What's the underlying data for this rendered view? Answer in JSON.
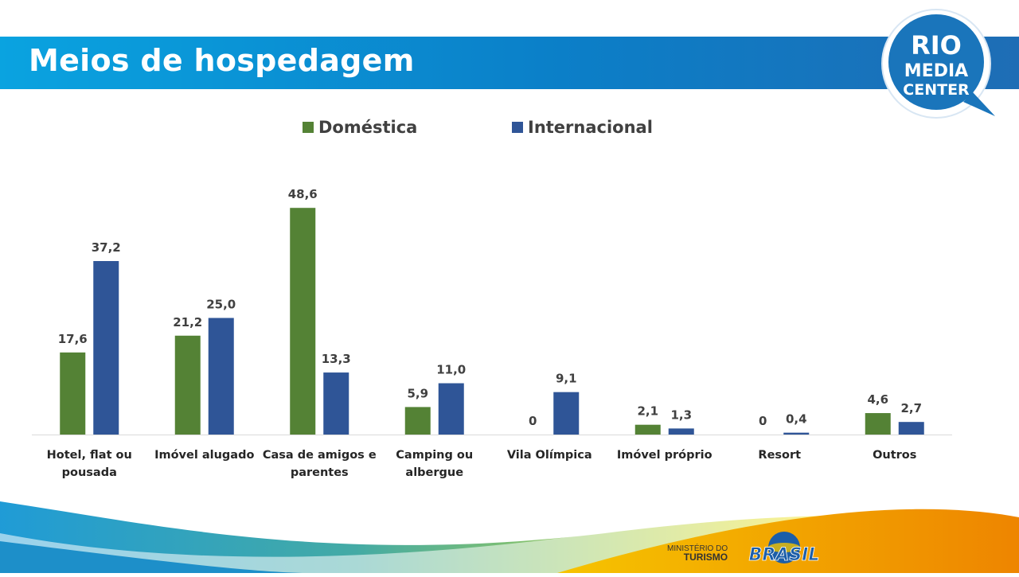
{
  "header": {
    "title": "Meios de hospedagem"
  },
  "logo": {
    "line1": "RIO",
    "line2": "MEDIA",
    "line3": "CENTER",
    "color": "#1a75bb"
  },
  "footer": {
    "ministerio_line1": "MINISTÉRIO DO",
    "ministerio_line2": "TURISMO",
    "brasil": "BRASIL"
  },
  "colors": {
    "domestica": "#548235",
    "internacional": "#2f5597",
    "header": "#0b7fc8"
  },
  "chart_data": {
    "type": "bar",
    "categories": [
      "Hotel, flat ou pousada",
      "Imóvel alugado",
      "Casa de amigos e parentes",
      "Camping ou albergue",
      "Vila Olímpica",
      "Imóvel próprio",
      "Resort",
      "Outros"
    ],
    "category_lines": [
      [
        "Hotel, flat ou",
        "pousada"
      ],
      [
        "Imóvel alugado"
      ],
      [
        "Casa de amigos e",
        "parentes"
      ],
      [
        "Camping ou",
        "albergue"
      ],
      [
        "Vila Olímpica"
      ],
      [
        "Imóvel próprio"
      ],
      [
        "Resort"
      ],
      [
        "Outros"
      ]
    ],
    "series": [
      {
        "name": "Doméstica",
        "values": [
          17.6,
          21.2,
          48.6,
          5.9,
          0,
          2.1,
          0,
          4.6
        ],
        "labels": [
          "17,6",
          "21,2",
          "48,6",
          "5,9",
          "0",
          "2,1",
          "0",
          "4,6"
        ]
      },
      {
        "name": "Internacional",
        "values": [
          37.2,
          25.0,
          13.3,
          11.0,
          9.1,
          1.3,
          0.4,
          2.7
        ],
        "labels": [
          "37,2",
          "25,0",
          "13,3",
          "11,0",
          "9,1",
          "1,3",
          "0,4",
          "2,7"
        ]
      }
    ],
    "legend_position": "top",
    "grid": false,
    "ylim": [
      0,
      50
    ]
  }
}
